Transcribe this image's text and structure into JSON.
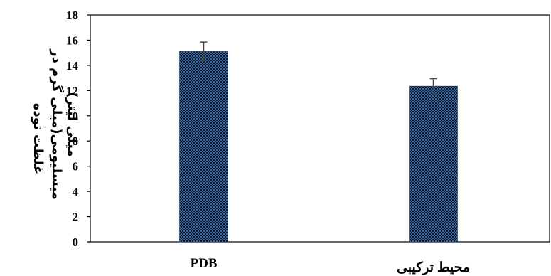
{
  "chart_data": {
    "type": "bar",
    "categories": [
      "PDB",
      "محیط ترکیبی"
    ],
    "values": [
      15.1,
      12.35
    ],
    "errors": [
      0.75,
      0.6
    ],
    "title": "",
    "xlabel": "",
    "ylabel_lines": [
      "غلظت توده",
      "میسلیومی(میلی گرم در",
      "میلی لیتر)"
    ],
    "ylim": [
      0,
      18
    ],
    "yticks": [
      0,
      2,
      4,
      6,
      8,
      10,
      12,
      14,
      16,
      18
    ],
    "grid": false,
    "legend": "none",
    "colors": {
      "bar_fill": "#3d6aa1",
      "bar_pattern_dark": "#0d1a2c",
      "axis": "#000000",
      "error_bar": "#444444"
    }
  }
}
